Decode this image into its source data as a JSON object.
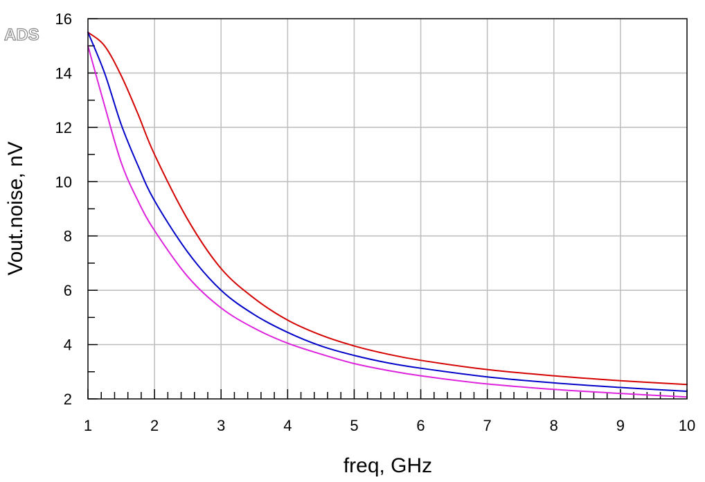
{
  "watermark": "ADS",
  "chart_data": {
    "type": "line",
    "xlabel": "freq, GHz",
    "ylabel": "Vout.noise, nV",
    "xlim": [
      1,
      10
    ],
    "ylim": [
      2,
      16
    ],
    "x_ticks": [
      1,
      2,
      3,
      4,
      5,
      6,
      7,
      8,
      9,
      10
    ],
    "y_ticks": [
      2,
      4,
      6,
      8,
      10,
      12,
      14,
      16
    ],
    "grid": true,
    "legend": "none",
    "x": [
      1.0,
      1.25,
      1.5,
      1.75,
      2.0,
      2.5,
      3.0,
      3.5,
      4.0,
      4.5,
      5.0,
      5.5,
      6.0,
      7.0,
      8.0,
      9.0,
      10.0
    ],
    "series": [
      {
        "color": "#d40000",
        "values": [
          15.5,
          15.0,
          13.9,
          12.5,
          11.0,
          8.6,
          6.8,
          5.7,
          4.9,
          4.35,
          3.95,
          3.65,
          3.42,
          3.08,
          2.85,
          2.67,
          2.53
        ]
      },
      {
        "color": "#0000c8",
        "values": [
          15.5,
          14.0,
          12.1,
          10.6,
          9.3,
          7.4,
          6.0,
          5.1,
          4.45,
          3.95,
          3.6,
          3.33,
          3.13,
          2.81,
          2.59,
          2.42,
          2.28
        ]
      },
      {
        "color": "#dd22dd",
        "values": [
          15.0,
          12.8,
          10.7,
          9.3,
          8.2,
          6.5,
          5.35,
          4.6,
          4.05,
          3.65,
          3.3,
          3.05,
          2.85,
          2.55,
          2.35,
          2.2,
          2.07
        ]
      }
    ]
  }
}
